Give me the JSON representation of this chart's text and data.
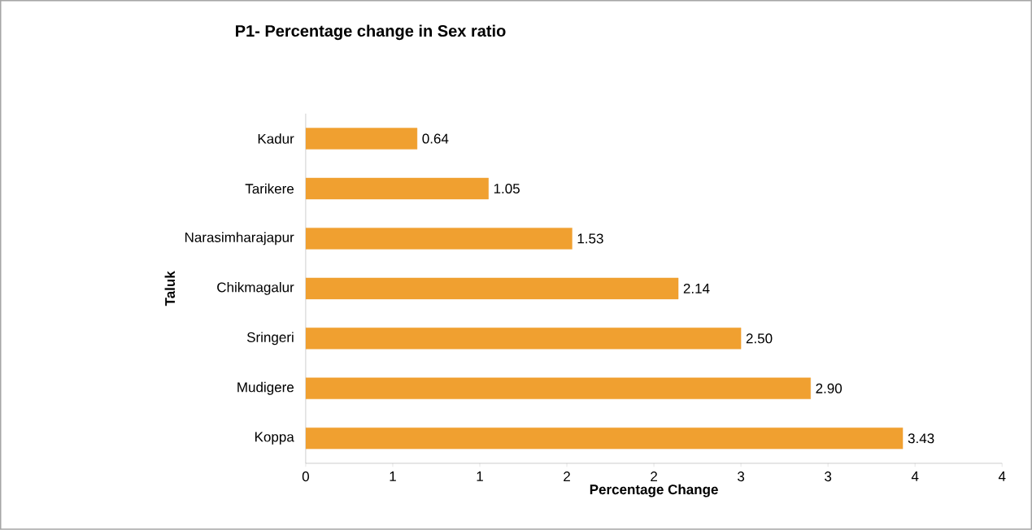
{
  "chart_data": {
    "type": "bar",
    "orientation": "horizontal",
    "title": "P1- Percentage change in  Sex ratio",
    "xlabel": "Percentage Change",
    "ylabel": "Taluk",
    "categories": [
      "Kadur",
      "Tarikere",
      "Narasimharajapur",
      "Chikmagalur",
      "Sringeri",
      "Mudigere",
      "Koppa"
    ],
    "values": [
      0.64,
      1.05,
      1.53,
      2.14,
      2.5,
      2.9,
      3.43
    ],
    "value_labels": [
      "0.64",
      "1.05",
      "1.53",
      "2.14",
      "2.50",
      "2.90",
      "3.43"
    ],
    "color": "#f0a030",
    "xlim": [
      0,
      4
    ],
    "xticks": [
      0,
      {
        "value": 0.5,
        "label": "1"
      },
      1,
      {
        "value": 1.5,
        "label": "2"
      },
      2,
      {
        "value": 2.5,
        "label": "3"
      },
      3,
      {
        "value": 3.5,
        "label": "4"
      },
      4
    ]
  }
}
